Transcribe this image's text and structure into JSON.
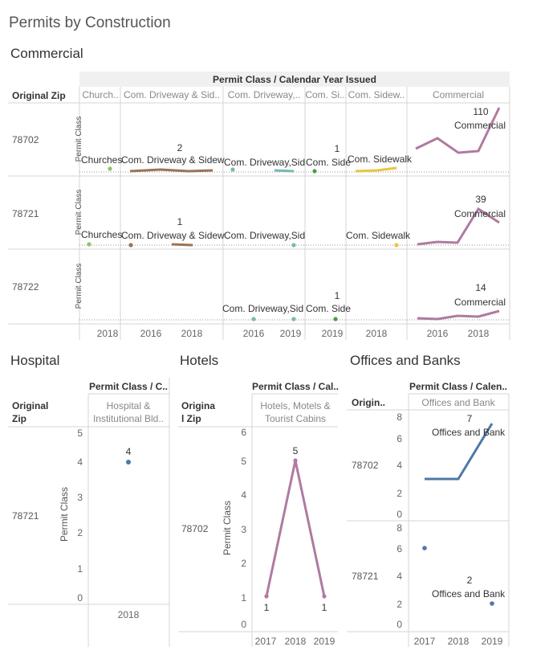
{
  "dashboard": {
    "title": "Permits by Construction"
  },
  "colors": {
    "churches": "#8cc46a",
    "driveway": "#9c7354",
    "driveway2": "#79b8b4",
    "sidewalk_green": "#4e9a48",
    "sidewalk_yellow": "#e8c640",
    "commercial": "#b07aa1",
    "blue": "#4e79a7"
  },
  "commercial": {
    "title": "Commercial",
    "header": "Permit Class / Calendar Year Issued",
    "row_header": "Original Zip",
    "axis_title": "Permit Class",
    "columns": [
      "Church..",
      "Com. Driveway & Sid..",
      "Com. Driveway,..",
      "Com. Si..",
      "Com. Sidew..",
      "Commercial"
    ],
    "zips": [
      "78702",
      "78721",
      "78722"
    ],
    "x_ticks": [
      "2018",
      "2016",
      "2018",
      "2016",
      "2019",
      "2019",
      "2018",
      "2016",
      "2018"
    ],
    "labels": [
      "Churches",
      "Com. Driveway & Sidew",
      "Com. Driveway,Sid",
      "Com. Side",
      "Com. Sidewalk",
      "Commercial",
      "Churches",
      "Com. Driveway & Sidew",
      "Com. Driveway,Sid",
      "Com. Sidewalk",
      "Commercial",
      "Com. Driveway,Sid",
      "Com. Side",
      "Commercial"
    ],
    "value_labels": [
      "2",
      "1",
      "110",
      "1",
      "39",
      "1",
      "14"
    ]
  },
  "hospital": {
    "title": "Hospital",
    "header": "Permit Class / C..",
    "col_label": "Hospital & Institutional Bld..",
    "row_header": "Original Zip",
    "zip": "78721",
    "axis_title": "Permit Class",
    "y_ticks": [
      "5",
      "4",
      "3",
      "2",
      "1",
      "0"
    ],
    "x_tick": "2018",
    "value_label": "4"
  },
  "hotels": {
    "title": "Hotels",
    "header": "Permit Class / Cal..",
    "col_label": "Hotels, Motels & Tourist Cabins",
    "row_header": "Original Zip",
    "zip": "78702",
    "axis_title": "Permit Class",
    "y_ticks": [
      "6",
      "5",
      "4",
      "3",
      "2",
      "1",
      "0"
    ],
    "x_ticks": [
      "2017",
      "2018",
      "2019"
    ],
    "value_labels": [
      "5",
      "1",
      "1"
    ]
  },
  "offices": {
    "title": "Offices and Banks",
    "header": "Permit Class / Calen..",
    "col_label": "Offices and Bank",
    "row_header": "Origin..",
    "zips": [
      "78702",
      "78721"
    ],
    "y_ticks_top": [
      "8",
      "6",
      "4",
      "2",
      "0"
    ],
    "y_ticks_bottom": [
      "8",
      "6",
      "4",
      "2",
      "0"
    ],
    "x_ticks": [
      "2017",
      "2018",
      "2019"
    ],
    "value_labels": [
      "7",
      "2"
    ],
    "mark_labels": [
      "Offices and Bank",
      "Offices and Bank"
    ]
  },
  "chart_data": [
    {
      "type": "line",
      "title": "Commercial",
      "xlabel": "Calendar Year Issued",
      "ylabel": "Permit Class",
      "series": [
        {
          "name": "78702 Commercial",
          "x": [
            2015,
            2016,
            2017,
            2018,
            2019
          ],
          "y": [
            55,
            70,
            50,
            52,
            110
          ]
        },
        {
          "name": "78721 Commercial",
          "x": [
            2015,
            2016,
            2017,
            2018,
            2019
          ],
          "y": [
            2,
            4,
            4,
            39,
            30
          ]
        },
        {
          "name": "78722 Commercial",
          "x": [
            2015,
            2016,
            2017,
            2018,
            2019
          ],
          "y": [
            4,
            3,
            6,
            5,
            14
          ]
        }
      ]
    },
    {
      "type": "scatter",
      "title": "Hospital",
      "ylabel": "Permit Class",
      "ylim": [
        0,
        5
      ],
      "series": [
        {
          "name": "78721",
          "x": [
            2018
          ],
          "y": [
            4
          ]
        }
      ]
    },
    {
      "type": "line",
      "title": "Hotels",
      "ylabel": "Permit Class",
      "ylim": [
        0,
        6
      ],
      "series": [
        {
          "name": "78702",
          "x": [
            2017,
            2018,
            2019
          ],
          "y": [
            1,
            5,
            1
          ]
        }
      ]
    },
    {
      "type": "line",
      "title": "Offices and Banks",
      "ylim": [
        0,
        8
      ],
      "series": [
        {
          "name": "78702",
          "x": [
            2017,
            2018,
            2019
          ],
          "y": [
            3,
            3,
            7
          ]
        },
        {
          "name": "78721",
          "x": [
            2017,
            2019
          ],
          "y": [
            6,
            2
          ]
        }
      ]
    }
  ]
}
